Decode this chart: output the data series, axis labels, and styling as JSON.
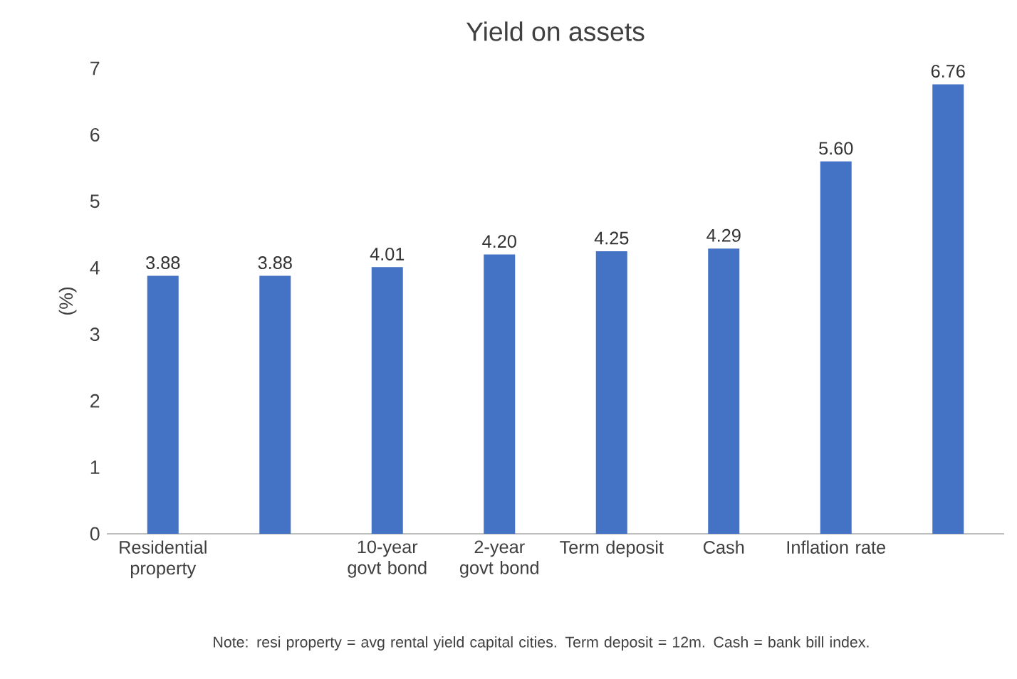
{
  "chart_data": {
    "type": "bar",
    "title": "Yield on assets",
    "ylabel": "(%)",
    "categories": [
      "Residential property",
      null,
      "10-year govt bond",
      "2-year govt bond",
      "Term deposit",
      "Cash",
      "Inflation rate",
      null
    ],
    "values": [
      3.88,
      3.88,
      4.01,
      4.2,
      4.25,
      4.29,
      5.6,
      6.76
    ],
    "value_labels": [
      "3.88",
      "3.88",
      "4.01",
      "4.20",
      "4.25",
      "4.29",
      "5.60",
      "6.76"
    ],
    "color": "#4472c4",
    "ylim": [
      0,
      7
    ],
    "yticks": [
      0,
      1,
      2,
      3,
      4,
      5,
      6,
      7
    ],
    "annotations": [
      "Note: resi property = avg rental yield capital cities. Term deposit = 12m. Cash = bank bill index."
    ]
  }
}
